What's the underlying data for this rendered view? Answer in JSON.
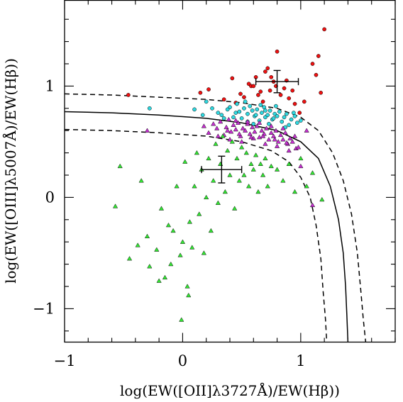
{
  "chart_data": {
    "type": "scatter",
    "xlabel": "log(EW([OII]λ3727Å)/EW(Hβ))",
    "ylabel": "log(EW([OIII]λ5007Å)/EW(Hβ))",
    "xlim": [
      -1.0,
      1.8
    ],
    "ylim": [
      -1.3,
      1.77
    ],
    "x_ticks": [
      -1,
      0,
      1
    ],
    "x_tick_labels": [
      "−1",
      "0",
      "1"
    ],
    "y_ticks": [
      -1,
      0,
      1
    ],
    "y_tick_labels": [
      "−1",
      "0",
      "1"
    ],
    "grid": false,
    "legend": "none",
    "colors": {
      "red": "#ee1111",
      "cyan": "#2fd8e0",
      "magenta": "#c52fd0",
      "green": "#33e633"
    },
    "series": [
      {
        "marker": "circle",
        "color": "#ee1111",
        "x": [
          -0.46,
          0.15,
          0.22,
          0.35,
          0.42,
          0.49,
          0.52,
          0.56,
          0.58,
          0.6,
          0.62,
          0.66,
          0.68,
          0.7,
          0.72,
          0.74,
          0.77,
          0.79,
          0.8,
          0.83,
          0.86,
          0.9,
          0.93,
          0.95,
          0.99,
          1.03,
          1.1,
          1.13,
          1.15,
          1.17,
          1.2,
          0.45,
          0.64,
          0.75,
          0.88
        ],
        "y": [
          0.92,
          0.94,
          0.97,
          0.88,
          1.07,
          0.93,
          0.9,
          1.02,
          1.0,
          1.0,
          1.08,
          0.95,
          0.86,
          1.13,
          1.16,
          0.96,
          1.04,
          1.0,
          1.31,
          0.92,
          0.98,
          0.89,
          0.96,
          0.84,
          0.76,
          0.86,
          1.2,
          1.1,
          1.27,
          0.94,
          1.51,
          0.85,
          0.92,
          1.08,
          1.05
        ]
      },
      {
        "marker": "circle",
        "color": "#2fd8e0",
        "x": [
          -0.28,
          0.1,
          0.17,
          0.2,
          0.25,
          0.3,
          0.33,
          0.38,
          0.4,
          0.43,
          0.46,
          0.48,
          0.5,
          0.52,
          0.55,
          0.57,
          0.59,
          0.61,
          0.63,
          0.65,
          0.67,
          0.69,
          0.7,
          0.72,
          0.74,
          0.76,
          0.78,
          0.8,
          0.82,
          0.84,
          0.86,
          0.88,
          0.9,
          0.92,
          0.95,
          0.97,
          1.0,
          0.35,
          0.53,
          0.6,
          0.66,
          0.73,
          0.79,
          0.87,
          0.94,
          0.55,
          0.62,
          0.7,
          0.77,
          0.45
        ],
        "y": [
          0.8,
          0.79,
          0.74,
          0.86,
          0.8,
          0.76,
          0.74,
          0.79,
          0.81,
          0.72,
          0.84,
          0.77,
          0.71,
          0.8,
          0.75,
          0.82,
          0.78,
          0.73,
          0.79,
          0.69,
          0.76,
          0.81,
          0.72,
          0.74,
          0.78,
          0.7,
          0.75,
          0.73,
          0.77,
          0.68,
          0.72,
          0.75,
          0.65,
          0.7,
          0.73,
          0.67,
          0.69,
          0.71,
          0.86,
          0.66,
          0.83,
          0.66,
          0.82,
          0.63,
          0.76,
          0.68,
          0.74,
          0.78,
          0.71,
          0.76
        ]
      },
      {
        "marker": "triangle",
        "color": "#c52fd0",
        "x": [
          -0.3,
          0.18,
          0.22,
          0.26,
          0.29,
          0.32,
          0.35,
          0.37,
          0.39,
          0.41,
          0.43,
          0.45,
          0.47,
          0.49,
          0.51,
          0.53,
          0.55,
          0.57,
          0.59,
          0.61,
          0.63,
          0.65,
          0.67,
          0.69,
          0.71,
          0.73,
          0.75,
          0.77,
          0.79,
          0.81,
          0.83,
          0.85,
          0.87,
          0.89,
          0.91,
          0.93,
          0.96,
          1.0,
          1.05,
          1.1,
          0.3,
          0.4,
          0.5,
          0.6,
          0.7,
          0.8,
          0.9,
          0.45,
          0.55,
          0.65,
          0.75,
          0.85,
          0.95,
          0.38,
          0.48,
          0.58,
          0.68,
          0.78,
          0.88,
          0.98
        ],
        "y": [
          0.6,
          0.64,
          0.58,
          0.66,
          0.62,
          0.68,
          0.56,
          0.63,
          0.7,
          0.59,
          0.65,
          0.61,
          0.67,
          0.55,
          0.62,
          0.6,
          0.66,
          0.57,
          0.63,
          0.59,
          0.64,
          0.54,
          0.6,
          0.57,
          0.62,
          0.52,
          0.58,
          0.55,
          0.6,
          0.5,
          0.56,
          0.52,
          0.58,
          0.48,
          0.53,
          0.5,
          0.44,
          0.28,
          0.6,
          -0.07,
          0.55,
          0.52,
          0.5,
          0.53,
          0.48,
          0.46,
          0.42,
          0.69,
          0.68,
          0.67,
          0.64,
          0.62,
          0.55,
          0.6,
          0.57,
          0.54,
          0.55,
          0.52,
          0.49,
          0.45
        ]
      },
      {
        "marker": "triangle",
        "color": "#33e633",
        "x": [
          -0.53,
          -0.57,
          -0.45,
          -0.38,
          -0.35,
          -0.3,
          -0.28,
          -0.22,
          -0.18,
          -0.15,
          -0.12,
          -0.08,
          -0.05,
          -0.02,
          0.0,
          0.02,
          0.04,
          0.06,
          0.08,
          0.1,
          0.12,
          0.14,
          0.16,
          0.18,
          0.2,
          0.22,
          0.24,
          0.26,
          0.28,
          0.3,
          0.32,
          0.34,
          0.36,
          0.38,
          0.4,
          0.42,
          0.44,
          0.46,
          0.48,
          0.5,
          0.52,
          0.54,
          0.56,
          0.58,
          0.6,
          0.62,
          0.64,
          0.66,
          0.68,
          0.7,
          0.72,
          0.75,
          0.8,
          0.85,
          0.9,
          0.95,
          1.0,
          1.05,
          1.1,
          1.18,
          -0.01,
          -0.1,
          0.05,
          -0.2
        ],
        "y": [
          0.28,
          -0.08,
          -0.55,
          -0.43,
          0.15,
          -0.35,
          -0.62,
          -0.47,
          -0.1,
          -0.72,
          -0.25,
          -0.3,
          0.1,
          -0.52,
          -0.4,
          0.32,
          -0.8,
          -0.22,
          -0.45,
          0.1,
          0.4,
          -0.15,
          0.25,
          -0.5,
          0.0,
          0.35,
          -0.3,
          0.15,
          0.48,
          -0.05,
          0.3,
          0.55,
          0.05,
          0.42,
          0.2,
          0.5,
          -0.1,
          0.35,
          0.15,
          0.45,
          0.2,
          0.4,
          0.1,
          0.3,
          0.25,
          0.38,
          0.05,
          0.3,
          0.2,
          0.35,
          0.1,
          0.28,
          0.25,
          0.15,
          0.3,
          0.05,
          0.35,
          0.1,
          0.22,
          -0.02,
          -1.1,
          -0.6,
          -0.88,
          -0.75
        ]
      }
    ],
    "error_bars": [
      {
        "x": 0.33,
        "y": 0.25,
        "xerr": 0.17,
        "yerr": 0.12
      },
      {
        "x": 0.8,
        "y": 1.04,
        "xerr": 0.18,
        "yerr": 0.1
      }
    ],
    "curves": [
      {
        "style": "solid",
        "x": [
          -1.0,
          -0.6,
          -0.2,
          0.2,
          0.5,
          0.8,
          1.0,
          1.15,
          1.25,
          1.32,
          1.36,
          1.38,
          1.39,
          1.4
        ],
        "y": [
          0.77,
          0.76,
          0.74,
          0.71,
          0.67,
          0.6,
          0.5,
          0.35,
          0.1,
          -0.2,
          -0.5,
          -0.8,
          -1.05,
          -1.3
        ]
      },
      {
        "style": "dashed",
        "x": [
          -1.0,
          -0.6,
          -0.2,
          0.2,
          0.5,
          0.8,
          1.0,
          1.15,
          1.27,
          1.36,
          1.43,
          1.48,
          1.51,
          1.53,
          1.55
        ],
        "y": [
          0.93,
          0.92,
          0.9,
          0.88,
          0.85,
          0.8,
          0.72,
          0.6,
          0.4,
          0.15,
          -0.15,
          -0.5,
          -0.85,
          -1.1,
          -1.3
        ]
      },
      {
        "style": "dashed",
        "x": [
          -1.0,
          -0.6,
          -0.2,
          0.2,
          0.5,
          0.75,
          0.9,
          1.0,
          1.08,
          1.13,
          1.17,
          1.19,
          1.21,
          1.22
        ],
        "y": [
          0.61,
          0.6,
          0.58,
          0.55,
          0.5,
          0.42,
          0.32,
          0.18,
          0.0,
          -0.25,
          -0.55,
          -0.85,
          -1.1,
          -1.3
        ]
      }
    ]
  }
}
